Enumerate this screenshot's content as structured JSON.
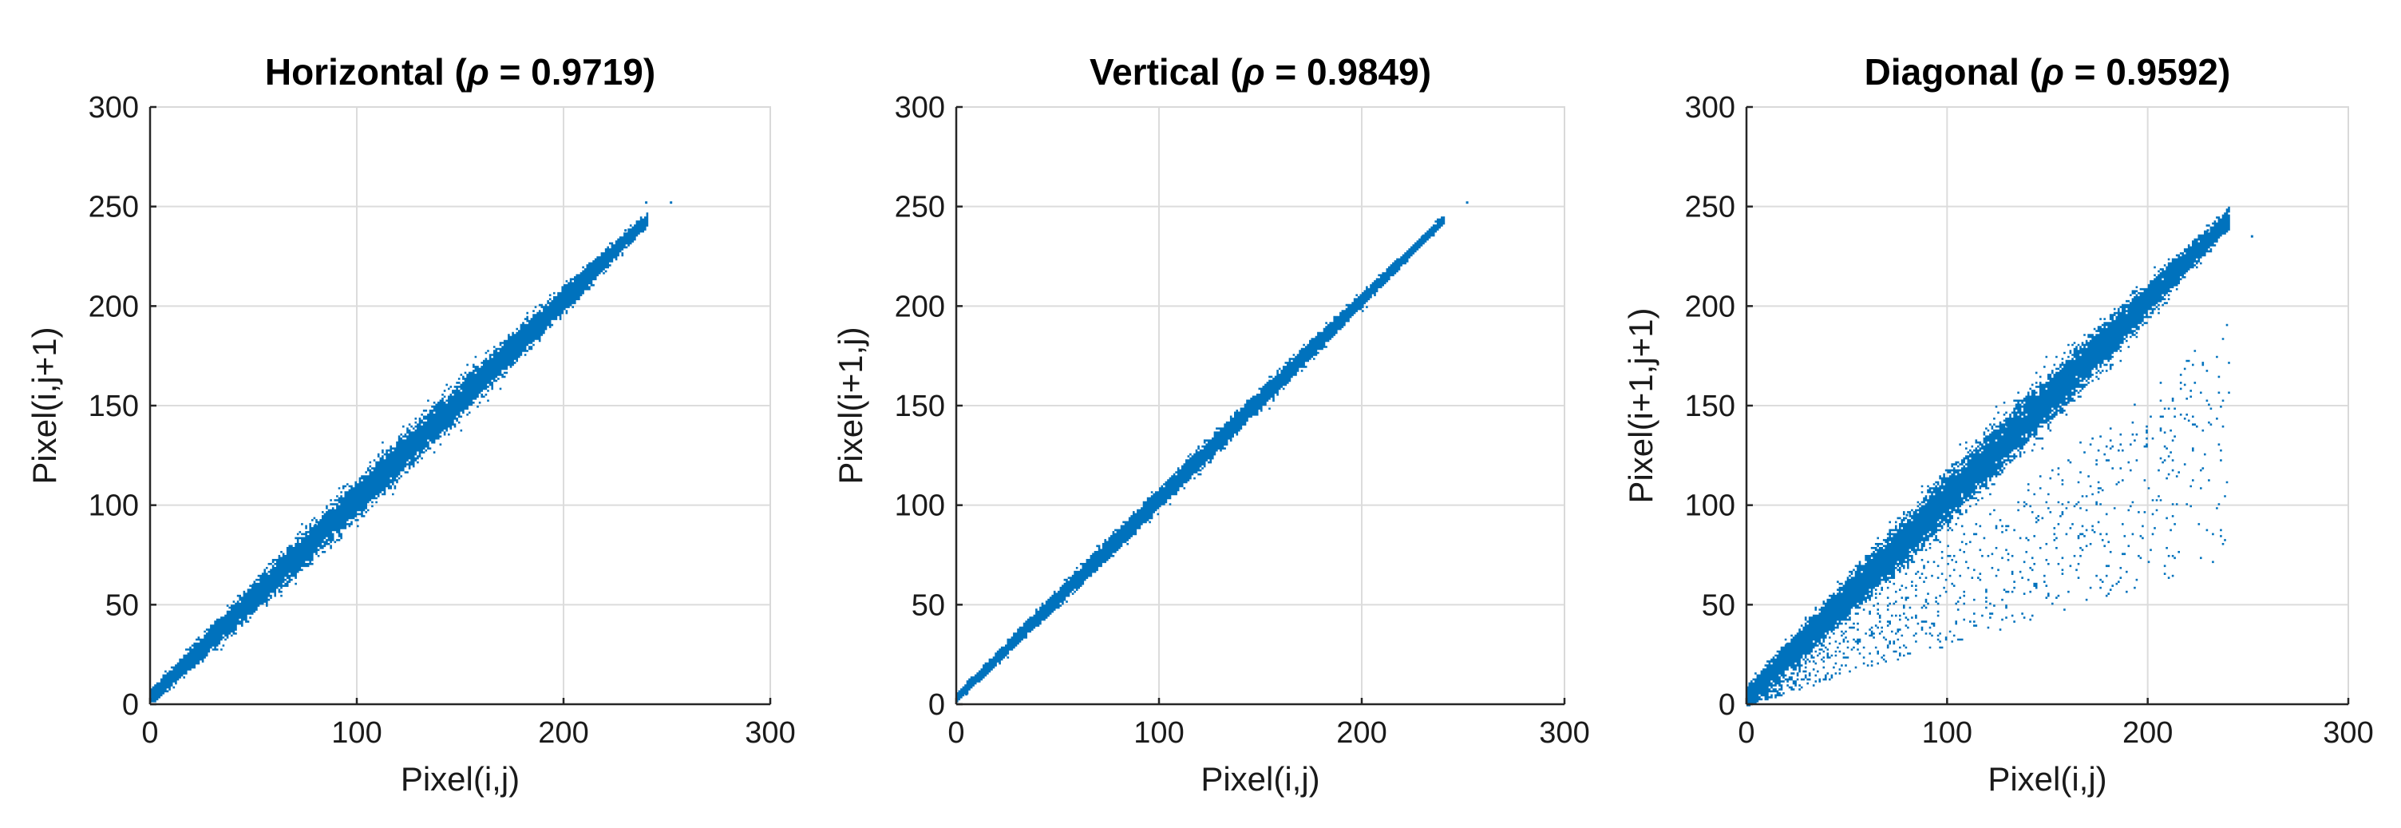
{
  "figure": {
    "colors": {
      "points": "#0072BD",
      "grid": "#dcdcdc",
      "axes": "#262626"
    }
  },
  "chart_data": [
    {
      "type": "scatter",
      "title": "Horizontal (ρ = 0.9719)",
      "title_main": "Horizontal (",
      "title_rho": "ρ",
      "title_tail": " = 0.9719)",
      "correlation": 0.9719,
      "xlabel": "Pixel(i,j)",
      "ylabel": "Pixel(i,j+1)",
      "xlim": [
        0,
        300
      ],
      "ylim": [
        0,
        300
      ],
      "xticks": [
        0,
        100,
        200,
        300
      ],
      "yticks": [
        0,
        50,
        100,
        150,
        200,
        250,
        300
      ],
      "grid": true,
      "approx_points": [
        [
          5,
          8
        ],
        [
          20,
          25
        ],
        [
          50,
          60
        ],
        [
          80,
          90
        ],
        [
          100,
          110
        ],
        [
          130,
          140
        ],
        [
          160,
          165
        ],
        [
          190,
          195
        ],
        [
          210,
          215
        ],
        [
          230,
          238
        ],
        [
          240,
          252
        ],
        [
          252,
          252
        ]
      ]
    },
    {
      "type": "scatter",
      "title": "Vertical (ρ = 0.9849)",
      "title_main": "Vertical (",
      "title_rho": "ρ",
      "title_tail": " = 0.9849)",
      "correlation": 0.9849,
      "xlabel": "Pixel(i,j)",
      "ylabel": "Pixel(i+1,j)",
      "xlim": [
        0,
        300
      ],
      "ylim": [
        0,
        300
      ],
      "xticks": [
        0,
        100,
        200,
        300
      ],
      "yticks": [
        0,
        50,
        100,
        150,
        200,
        250,
        300
      ],
      "grid": true,
      "approx_points": [
        [
          5,
          5
        ],
        [
          20,
          22
        ],
        [
          50,
          55
        ],
        [
          80,
          85
        ],
        [
          100,
          105
        ],
        [
          130,
          135
        ],
        [
          160,
          162
        ],
        [
          190,
          192
        ],
        [
          210,
          215
        ],
        [
          230,
          235
        ],
        [
          240,
          242
        ],
        [
          252,
          252
        ]
      ]
    },
    {
      "type": "scatter",
      "title": "Diagonal (ρ = 0.9592)",
      "title_main": "Diagonal (",
      "title_rho": "ρ",
      "title_tail": " = 0.9592)",
      "correlation": 0.9592,
      "xlabel": "Pixel(i,j)",
      "ylabel": "Pixel(i+1,j+1)",
      "xlim": [
        0,
        300
      ],
      "ylim": [
        0,
        300
      ],
      "xticks": [
        0,
        100,
        200,
        300
      ],
      "yticks": [
        0,
        50,
        100,
        150,
        200,
        250,
        300
      ],
      "grid": true,
      "approx_points": [
        [
          5,
          10
        ],
        [
          20,
          30
        ],
        [
          50,
          60
        ],
        [
          80,
          95
        ],
        [
          100,
          110
        ],
        [
          130,
          140
        ],
        [
          160,
          165
        ],
        [
          190,
          195
        ],
        [
          210,
          218
        ],
        [
          230,
          238
        ],
        [
          240,
          242
        ],
        [
          252,
          235
        ]
      ]
    }
  ]
}
